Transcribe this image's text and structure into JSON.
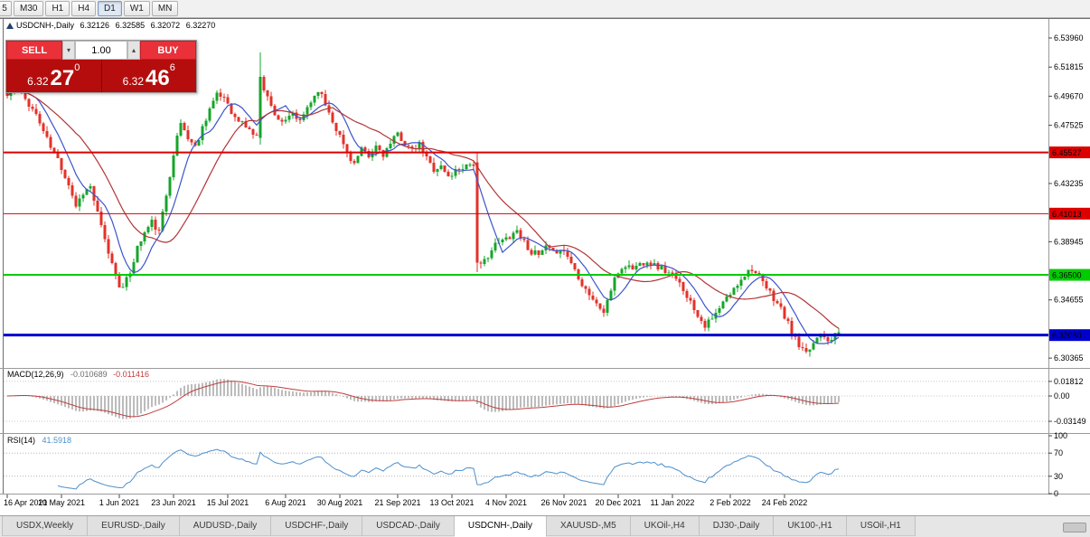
{
  "toolbar": {
    "timeframes": [
      "5",
      "M30",
      "H1",
      "H4",
      "D1",
      "W1",
      "MN"
    ],
    "active": "D1"
  },
  "chart": {
    "symbol": "USDCNH-,Daily",
    "open": "6.32126",
    "high": "6.32585",
    "low": "6.32072",
    "close": "6.32270"
  },
  "trade_panel": {
    "sell_label": "SELL",
    "buy_label": "BUY",
    "volume": "1.00",
    "spin_down": "▾",
    "spin_up": "▴",
    "sell_price": {
      "base": "6.32",
      "big": "27",
      "sup": "0"
    },
    "buy_price": {
      "base": "6.32",
      "big": "46",
      "sup": "6"
    }
  },
  "indicators": {
    "macd": {
      "name": "MACD(12,26,9)",
      "value_main": "-0.010689",
      "value_signal": "-0.011416",
      "ticks": [
        {
          "v": 0.01812,
          "label": "0.01812"
        },
        {
          "v": 0,
          "label": "0.00"
        },
        {
          "v": -0.03149,
          "label": "-0.03149"
        }
      ]
    },
    "rsi": {
      "name": "RSI(14)",
      "value": "41.5918",
      "ticks": [
        {
          "v": 100,
          "label": "100"
        },
        {
          "v": 70,
          "label": "70"
        },
        {
          "v": 30,
          "label": "30"
        },
        {
          "v": 0,
          "label": "0"
        }
      ],
      "levels": [
        70,
        30
      ]
    }
  },
  "price_axis": {
    "ticks": [
      {
        "v": 6.5396,
        "label": "6.53960"
      },
      {
        "v": 6.51815,
        "label": "6.51815"
      },
      {
        "v": 6.4967,
        "label": "6.49670"
      },
      {
        "v": 6.47525,
        "label": "6.47525"
      },
      {
        "v": 6.43235,
        "label": "6.43235"
      },
      {
        "v": 6.38945,
        "label": "6.38945"
      },
      {
        "v": 6.34655,
        "label": "6.34655"
      },
      {
        "v": 6.30365,
        "label": "6.30365"
      }
    ]
  },
  "date_axis": {
    "labels": [
      {
        "i": 0,
        "text": "16 Apr 2021"
      },
      {
        "i": 15,
        "text": "10 May 2021"
      },
      {
        "i": 31,
        "text": "1 Jun 2021"
      },
      {
        "i": 46,
        "text": "23 Jun 2021"
      },
      {
        "i": 61,
        "text": "15 Jul 2021"
      },
      {
        "i": 77,
        "text": "6 Aug 2021"
      },
      {
        "i": 92,
        "text": "30 Aug 2021"
      },
      {
        "i": 108,
        "text": "21 Sep 2021"
      },
      {
        "i": 123,
        "text": "13 Oct 2021"
      },
      {
        "i": 138,
        "text": "4 Nov 2021"
      },
      {
        "i": 154,
        "text": "26 Nov 2021"
      },
      {
        "i": 169,
        "text": "20 Dec 2021"
      },
      {
        "i": 184,
        "text": "11 Jan 2022"
      },
      {
        "i": 200,
        "text": "2 Feb 2022"
      },
      {
        "i": 215,
        "text": "24 Feb 2022"
      }
    ]
  },
  "tabs": {
    "active": "USDCNH-,Daily",
    "items": [
      "USDX,Weekly",
      "EURUSD-,Daily",
      "AUDUSD-,Daily",
      "USDCHF-,Daily",
      "USDCAD-,Daily",
      "USDCNH-,Daily",
      "XAUUSD-,M5",
      "UKOil-,H4",
      "DJ30-,Daily",
      "UK100-,H1",
      "USOil-,H1"
    ]
  },
  "chart_data": {
    "type": "candlestick",
    "symbol": "USDCNH",
    "timeframe": "Daily",
    "n_candles": 231,
    "seed": 11,
    "y_range": [
      6.2976,
      6.5476
    ],
    "x_range_dates": [
      "16 Apr 2021",
      "8 Mar 2022"
    ],
    "last_ohlc": {
      "open": 6.32126,
      "high": 6.32585,
      "low": 6.32072,
      "close": 6.3227
    },
    "levels": [
      {
        "price": 6.45527,
        "label": "6.45527",
        "color": "#dd0000",
        "width": 2,
        "text": "#ffffff"
      },
      {
        "price": 6.41013,
        "label": "6.41013",
        "color": "#dd0000",
        "width": 1,
        "text": "#ffffff"
      },
      {
        "price": 6.365,
        "label": "6.36500",
        "color": "#00cc00",
        "width": 2,
        "text": "#000000"
      },
      {
        "price": 6.3206,
        "label": "6.32060",
        "color": "#0000cc",
        "width": 3,
        "text": "#ffffff"
      }
    ],
    "colors": {
      "up": "#17a42b",
      "down": "#e2322a",
      "ma_fast": "#3c55cc",
      "ma_slow": "#b23535",
      "macd_hist": "#bcbcbc",
      "macd_signal": "#c03c3c",
      "rsi": "#4d8fcc"
    },
    "ma_fast_period": 8,
    "ma_slow_period": 21,
    "macd_params": [
      12,
      26,
      9
    ],
    "rsi_period": 14,
    "anchors": [
      [
        0,
        6.497
      ],
      [
        2,
        6.505
      ],
      [
        4,
        6.498
      ],
      [
        6,
        6.491
      ],
      [
        8,
        6.483
      ],
      [
        10,
        6.471
      ],
      [
        12,
        6.459
      ],
      [
        14,
        6.45
      ],
      [
        15,
        6.444
      ],
      [
        17,
        6.432
      ],
      [
        19,
        6.416
      ],
      [
        21,
        6.426
      ],
      [
        23,
        6.43
      ],
      [
        25,
        6.41
      ],
      [
        27,
        6.39
      ],
      [
        29,
        6.373
      ],
      [
        31,
        6.358
      ],
      [
        32,
        6.355
      ],
      [
        34,
        6.367
      ],
      [
        36,
        6.385
      ],
      [
        38,
        6.396
      ],
      [
        40,
        6.404
      ],
      [
        42,
        6.396
      ],
      [
        44,
        6.424
      ],
      [
        46,
        6.455
      ],
      [
        48,
        6.477
      ],
      [
        50,
        6.466
      ],
      [
        52,
        6.459
      ],
      [
        54,
        6.474
      ],
      [
        56,
        6.488
      ],
      [
        58,
        6.497
      ],
      [
        60,
        6.496
      ],
      [
        61,
        6.492
      ],
      [
        63,
        6.48
      ],
      [
        65,
        6.477
      ],
      [
        67,
        6.472
      ],
      [
        69,
        6.466
      ],
      [
        70,
        6.511
      ],
      [
        71,
        6.503
      ],
      [
        73,
        6.489
      ],
      [
        75,
        6.48
      ],
      [
        77,
        6.477
      ],
      [
        79,
        6.484
      ],
      [
        81,
        6.477
      ],
      [
        83,
        6.489
      ],
      [
        85,
        6.497
      ],
      [
        86,
        6.502
      ],
      [
        88,
        6.491
      ],
      [
        90,
        6.479
      ],
      [
        92,
        6.467
      ],
      [
        94,
        6.455
      ],
      [
        96,
        6.447
      ],
      [
        98,
        6.457
      ],
      [
        100,
        6.451
      ],
      [
        102,
        6.46
      ],
      [
        104,
        6.454
      ],
      [
        106,
        6.461
      ],
      [
        108,
        6.469
      ],
      [
        110,
        6.462
      ],
      [
        112,
        6.456
      ],
      [
        114,
        6.461
      ],
      [
        116,
        6.451
      ],
      [
        118,
        6.443
      ],
      [
        120,
        6.445
      ],
      [
        122,
        6.437
      ],
      [
        124,
        6.442
      ],
      [
        126,
        6.445
      ],
      [
        128,
        6.447
      ],
      [
        129,
        6.447
      ],
      [
        130,
        6.374
      ],
      [
        131,
        6.371
      ],
      [
        133,
        6.38
      ],
      [
        135,
        6.387
      ],
      [
        137,
        6.39
      ],
      [
        139,
        6.394
      ],
      [
        141,
        6.398
      ],
      [
        143,
        6.389
      ],
      [
        145,
        6.382
      ],
      [
        147,
        6.379
      ],
      [
        149,
        6.385
      ],
      [
        151,
        6.381
      ],
      [
        153,
        6.385
      ],
      [
        155,
        6.379
      ],
      [
        157,
        6.369
      ],
      [
        159,
        6.359
      ],
      [
        161,
        6.351
      ],
      [
        163,
        6.343
      ],
      [
        165,
        6.338
      ],
      [
        167,
        6.354
      ],
      [
        169,
        6.367
      ],
      [
        171,
        6.372
      ],
      [
        173,
        6.37
      ],
      [
        175,
        6.373
      ],
      [
        177,
        6.376
      ],
      [
        179,
        6.372
      ],
      [
        181,
        6.37
      ],
      [
        183,
        6.366
      ],
      [
        185,
        6.361
      ],
      [
        187,
        6.355
      ],
      [
        189,
        6.345
      ],
      [
        191,
        6.336
      ],
      [
        193,
        6.328
      ],
      [
        195,
        6.332
      ],
      [
        197,
        6.34
      ],
      [
        199,
        6.348
      ],
      [
        201,
        6.354
      ],
      [
        203,
        6.363
      ],
      [
        205,
        6.368
      ],
      [
        206,
        6.37
      ],
      [
        208,
        6.362
      ],
      [
        210,
        6.355
      ],
      [
        212,
        6.348
      ],
      [
        214,
        6.34
      ],
      [
        215,
        6.334
      ],
      [
        217,
        6.323
      ],
      [
        219,
        6.312
      ],
      [
        221,
        6.306
      ],
      [
        223,
        6.315
      ],
      [
        225,
        6.323
      ],
      [
        227,
        6.318
      ],
      [
        229,
        6.32
      ],
      [
        230,
        6.3227
      ]
    ],
    "overrides": {
      "70": [
        6.466,
        6.529,
        6.461,
        6.511
      ],
      "130": [
        6.448,
        6.455,
        6.367,
        6.374
      ],
      "230": [
        6.32126,
        6.32585,
        6.32072,
        6.3227
      ]
    }
  }
}
